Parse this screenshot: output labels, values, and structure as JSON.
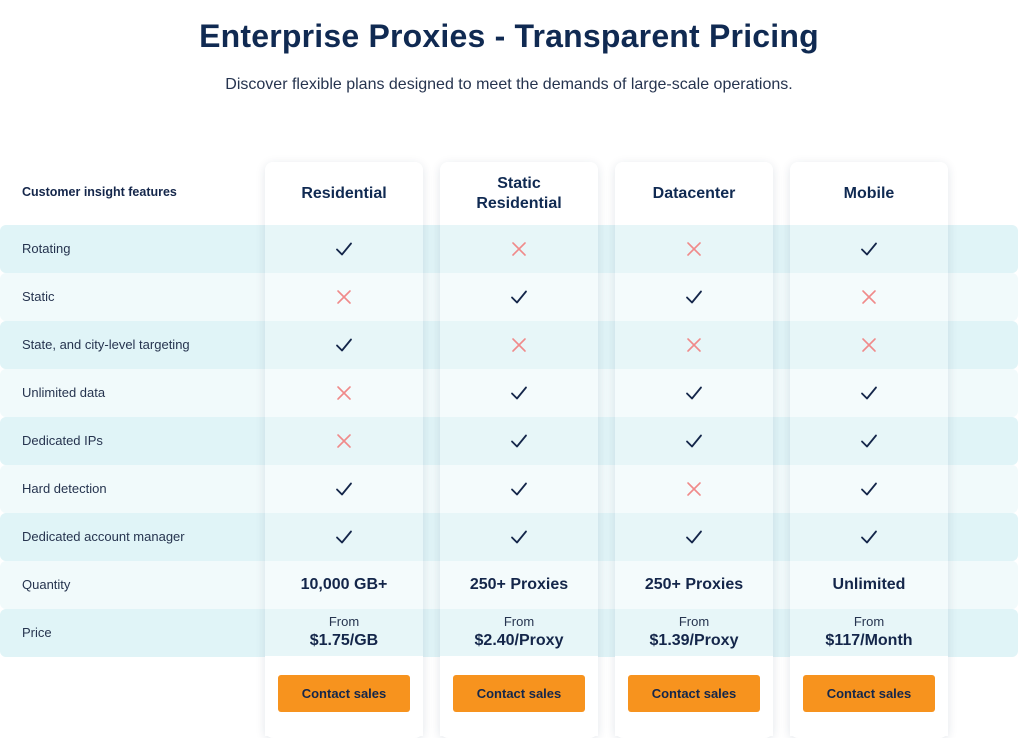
{
  "header": {
    "title": "Enterprise Proxies - Transparent Pricing",
    "subtitle": "Discover flexible plans designed to meet the demands of large-scale operations."
  },
  "table": {
    "features_header": "Customer insight features",
    "plans": [
      {
        "name": "Residential",
        "quantity": "10,000 GB+",
        "price_prefix": "From",
        "price": "$1.75/GB",
        "cta": "Contact sales"
      },
      {
        "name": "Static Residential",
        "quantity": "250+ Proxies",
        "price_prefix": "From",
        "price": "$2.40/Proxy",
        "cta": "Contact sales"
      },
      {
        "name": "Datacenter",
        "quantity": "250+ Proxies",
        "price_prefix": "From",
        "price": "$1.39/Proxy",
        "cta": "Contact sales"
      },
      {
        "name": "Mobile",
        "quantity": "Unlimited",
        "price_prefix": "From",
        "price": "$117/Month",
        "cta": "Contact sales"
      }
    ],
    "features": [
      {
        "label": "Rotating",
        "values": [
          "check",
          "cross",
          "cross",
          "check"
        ]
      },
      {
        "label": "Static",
        "values": [
          "cross",
          "check",
          "check",
          "cross"
        ]
      },
      {
        "label": "State, and city-level targeting",
        "values": [
          "check",
          "cross",
          "cross",
          "cross"
        ]
      },
      {
        "label": "Unlimited data",
        "values": [
          "cross",
          "check",
          "check",
          "check"
        ]
      },
      {
        "label": "Dedicated IPs",
        "values": [
          "cross",
          "check",
          "check",
          "check"
        ]
      },
      {
        "label": "Hard detection",
        "values": [
          "check",
          "check",
          "cross",
          "check"
        ]
      },
      {
        "label": "Dedicated account manager",
        "values": [
          "check",
          "check",
          "check",
          "check"
        ]
      }
    ],
    "quantity_label": "Quantity",
    "price_label": "Price"
  },
  "colors": {
    "accent": "#f7931e",
    "check": "#14264a",
    "cross": "#f08a8a",
    "row_odd": "#e0f4f7",
    "row_even": "#f1fafb"
  },
  "icons": {
    "check": "check-icon",
    "cross": "cross-icon"
  }
}
